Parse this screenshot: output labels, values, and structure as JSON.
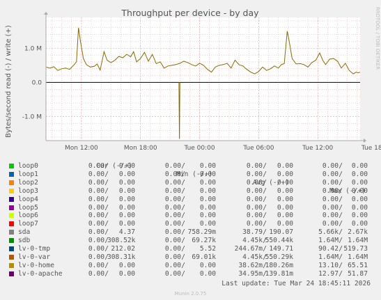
{
  "chart_data": {
    "type": "line",
    "title": "Throughput per device - by day",
    "ylabel": "Bytes/second read (-) / write (+)",
    "vendor": "RRDTOOL / TOBI OETIKER",
    "x_ticks": [
      "Mon 12:00",
      "Mon 18:00",
      "Tue 00:00",
      "Tue 06:00",
      "Tue 12:00",
      "Tue 18:00"
    ],
    "y_ticks": [
      "1.0 M",
      "0.0",
      "-1.0 M"
    ],
    "ylim": [
      -1700000,
      1900000
    ],
    "x_hours_range": [
      -3.6,
      28.3
    ],
    "grid": true,
    "series": [
      {
        "name": "sdb",
        "color": "#8a6a00",
        "write_points": [
          [
            -3.6,
            450000
          ],
          [
            -3.2,
            420000
          ],
          [
            -2.8,
            460000
          ],
          [
            -2.4,
            350000
          ],
          [
            -2.0,
            400000
          ],
          [
            -1.6,
            420000
          ],
          [
            -1.2,
            380000
          ],
          [
            -0.8,
            500000
          ],
          [
            -0.5,
            600000
          ],
          [
            -0.3,
            1600000
          ],
          [
            -0.1,
            1200000
          ],
          [
            0.2,
            700000
          ],
          [
            0.5,
            520000
          ],
          [
            0.9,
            450000
          ],
          [
            1.3,
            470000
          ],
          [
            1.6,
            540000
          ],
          [
            1.9,
            360000
          ],
          [
            2.3,
            900000
          ],
          [
            2.6,
            650000
          ],
          [
            3.0,
            580000
          ],
          [
            3.4,
            650000
          ],
          [
            3.8,
            760000
          ],
          [
            4.2,
            720000
          ],
          [
            4.6,
            820000
          ],
          [
            5.0,
            750000
          ],
          [
            5.3,
            900000
          ],
          [
            5.6,
            600000
          ],
          [
            6.0,
            700000
          ],
          [
            6.4,
            880000
          ],
          [
            6.8,
            620000
          ],
          [
            7.2,
            820000
          ],
          [
            7.6,
            550000
          ],
          [
            8.0,
            600000
          ],
          [
            8.4,
            420000
          ],
          [
            8.8,
            480000
          ],
          [
            9.2,
            500000
          ],
          [
            9.6,
            520000
          ],
          [
            10.0,
            560000
          ],
          [
            10.4,
            620000
          ],
          [
            10.8,
            580000
          ],
          [
            11.2,
            520000
          ],
          [
            11.6,
            480000
          ],
          [
            12.0,
            560000
          ],
          [
            12.4,
            500000
          ],
          [
            12.8,
            380000
          ],
          [
            13.2,
            300000
          ],
          [
            13.6,
            450000
          ],
          [
            14.0,
            500000
          ],
          [
            14.4,
            520000
          ],
          [
            14.8,
            560000
          ],
          [
            15.2,
            420000
          ],
          [
            15.6,
            650000
          ],
          [
            16.0,
            520000
          ],
          [
            16.4,
            480000
          ],
          [
            16.8,
            380000
          ],
          [
            17.2,
            300000
          ],
          [
            17.6,
            250000
          ],
          [
            18.0,
            320000
          ],
          [
            18.4,
            450000
          ],
          [
            18.8,
            350000
          ],
          [
            19.2,
            400000
          ],
          [
            19.6,
            480000
          ],
          [
            20.0,
            420000
          ],
          [
            20.3,
            520000
          ],
          [
            20.6,
            550000
          ],
          [
            20.9,
            1500000
          ],
          [
            21.1,
            1200000
          ],
          [
            21.4,
            700000
          ],
          [
            21.8,
            540000
          ],
          [
            22.2,
            550000
          ],
          [
            22.6,
            520000
          ],
          [
            23.0,
            450000
          ],
          [
            23.4,
            580000
          ],
          [
            23.8,
            650000
          ],
          [
            24.2,
            860000
          ],
          [
            24.5,
            650000
          ],
          [
            24.8,
            520000
          ],
          [
            25.2,
            680000
          ],
          [
            25.6,
            700000
          ],
          [
            26.0,
            620000
          ],
          [
            26.4,
            420000
          ],
          [
            26.8,
            560000
          ],
          [
            27.2,
            350000
          ],
          [
            27.6,
            250000
          ],
          [
            27.9,
            300000
          ],
          [
            28.1,
            280000
          ],
          [
            28.3,
            300000
          ]
        ],
        "read_points": [
          [
            9.9,
            0
          ],
          [
            9.95,
            -1650000
          ],
          [
            10.0,
            0
          ]
        ]
      }
    ]
  },
  "legend_header": {
    "cur": "Cur (-/+)",
    "min": "Min (-/+)",
    "avg": "Avg (-/+)",
    "max": "Max (-/+)"
  },
  "legend": [
    {
      "name": "loop0",
      "color": "#00cc00",
      "cur_r": "0.00",
      "cur_w": "0.00",
      "min_r": "0.00",
      "min_w": "0.00",
      "avg_r": "0.00",
      "avg_w": "0.00",
      "max_r": "0.00",
      "max_w": "0.00"
    },
    {
      "name": "loop1",
      "color": "#0066b3",
      "cur_r": "0.00",
      "cur_w": "0.00",
      "min_r": "0.00",
      "min_w": "0.00",
      "avg_r": "0.00",
      "avg_w": "0.00",
      "max_r": "0.00",
      "max_w": "0.00"
    },
    {
      "name": "loop2",
      "color": "#ff8000",
      "cur_r": "0.00",
      "cur_w": "0.00",
      "min_r": "0.00",
      "min_w": "0.00",
      "avg_r": "0.00",
      "avg_w": "0.00",
      "max_r": "0.00",
      "max_w": "0.00"
    },
    {
      "name": "loop3",
      "color": "#ffcc00",
      "cur_r": "0.00",
      "cur_w": "0.00",
      "min_r": "0.00",
      "min_w": "0.00",
      "avg_r": "0.00",
      "avg_w": "0.00",
      "max_r": "0.00",
      "max_w": "0.00"
    },
    {
      "name": "loop4",
      "color": "#330099",
      "cur_r": "0.00",
      "cur_w": "0.00",
      "min_r": "0.00",
      "min_w": "0.00",
      "avg_r": "0.00",
      "avg_w": "0.00",
      "max_r": "0.00",
      "max_w": "0.00"
    },
    {
      "name": "loop5",
      "color": "#990099",
      "cur_r": "0.00",
      "cur_w": "0.00",
      "min_r": "0.00",
      "min_w": "0.00",
      "avg_r": "0.00",
      "avg_w": "0.00",
      "max_r": "0.00",
      "max_w": "0.00"
    },
    {
      "name": "loop6",
      "color": "#ccff00",
      "cur_r": "0.00",
      "cur_w": "0.00",
      "min_r": "0.00",
      "min_w": "0.00",
      "avg_r": "0.00",
      "avg_w": "0.00",
      "max_r": "0.00",
      "max_w": "0.00"
    },
    {
      "name": "loop7",
      "color": "#ff0000",
      "cur_r": "0.00",
      "cur_w": "0.00",
      "min_r": "0.00",
      "min_w": "0.00",
      "avg_r": "0.00",
      "avg_w": "0.00",
      "max_r": "0.00",
      "max_w": "0.00"
    },
    {
      "name": "sda",
      "color": "#808080",
      "cur_r": "0.00",
      "cur_w": "4.37",
      "min_r": "0.00",
      "min_w": "758.29m",
      "avg_r": "38.79",
      "avg_w": "190.07",
      "max_r": "5.66k",
      "max_w": "2.67k"
    },
    {
      "name": "sdb",
      "color": "#008f00",
      "cur_r": "0.00",
      "cur_w": "308.52k",
      "min_r": "0.00",
      "min_w": "69.27k",
      "avg_r": "4.45k",
      "avg_w": "550.44k",
      "max_r": "1.64M",
      "max_w": "1.64M"
    },
    {
      "name": "lv-0-tmp",
      "color": "#00487d",
      "cur_r": "0.00",
      "cur_w": "212.02",
      "min_r": "0.00",
      "min_w": "5.52",
      "avg_r": "244.67m",
      "avg_w": "149.71",
      "max_r": "90.42",
      "max_w": "519.73"
    },
    {
      "name": "lv-0-var",
      "color": "#b35a00",
      "cur_r": "0.00",
      "cur_w": "308.31k",
      "min_r": "0.00",
      "min_w": "69.01k",
      "avg_r": "4.45k",
      "avg_w": "550.29k",
      "max_r": "1.64M",
      "max_w": "1.64M"
    },
    {
      "name": "lv-0-home",
      "color": "#b38f00",
      "cur_r": "0.00",
      "cur_w": "0.00",
      "min_r": "0.00",
      "min_w": "0.00",
      "avg_r": "38.62m",
      "avg_w": "180.26m",
      "max_r": "13.10",
      "max_w": "65.51"
    },
    {
      "name": "lv-0-apache",
      "color": "#6b006b",
      "cur_r": "0.00",
      "cur_w": "0.00",
      "min_r": "0.00",
      "min_w": "0.00",
      "avg_r": "34.95m",
      "avg_w": "139.81m",
      "max_r": "12.97",
      "max_w": "51.87"
    }
  ],
  "last_update": "Last update: Tue Mar 24 18:45:11 2026",
  "munin_version": "Munin 2.0.75"
}
